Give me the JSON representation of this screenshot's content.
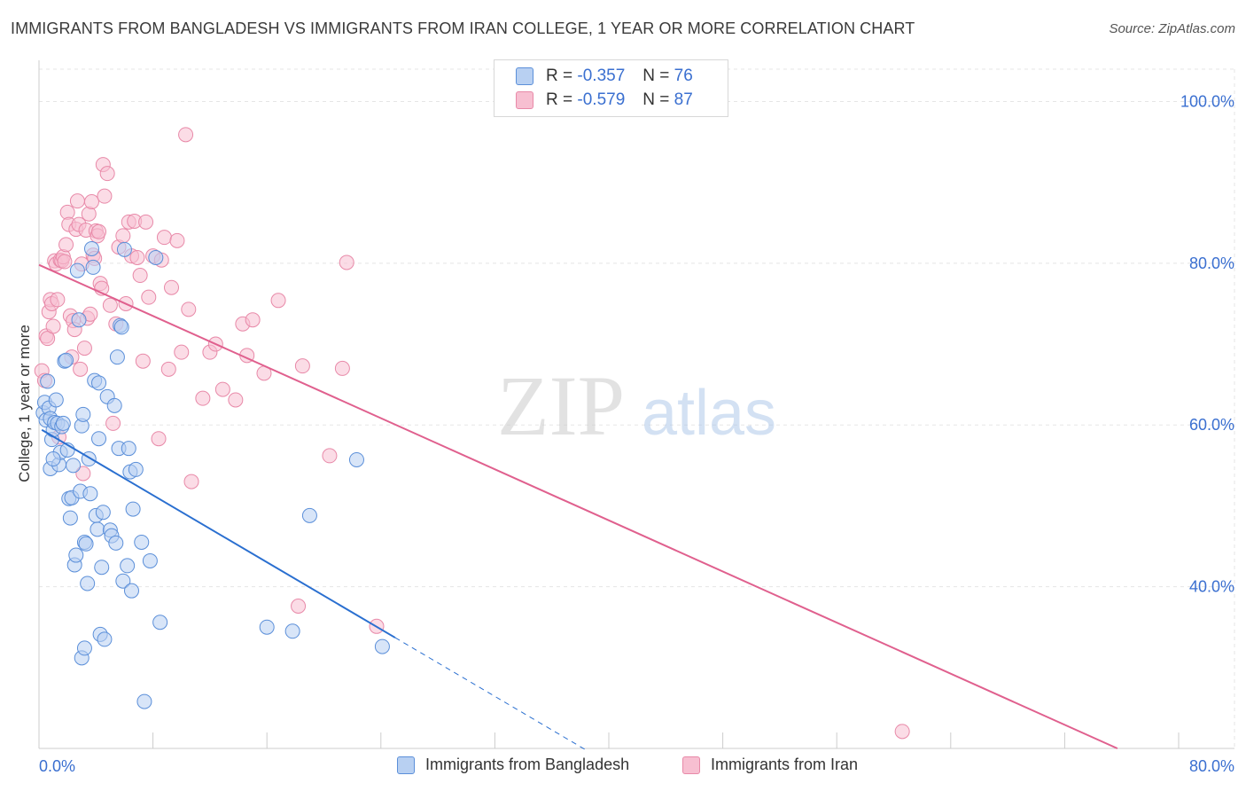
{
  "title": "IMMIGRANTS FROM BANGLADESH VS IMMIGRANTS FROM IRAN COLLEGE, 1 YEAR OR MORE CORRELATION CHART",
  "source": "Source: ZipAtlas.com",
  "watermark": {
    "zip": "ZIP",
    "atlas": "atlas"
  },
  "legend": {
    "r_label": "R =",
    "n_label": "N =",
    "rows": [
      {
        "r": "-0.357",
        "n": "76"
      },
      {
        "r": "-0.579",
        "n": "87"
      }
    ]
  },
  "colors": {
    "bangladesh_fill": "#b8d0f2",
    "bangladesh_stroke": "#5b8fd9",
    "bangladesh_line": "#2a6fd0",
    "iran_fill": "#f7bfd1",
    "iran_stroke": "#e889a8",
    "iran_line": "#e0608e",
    "tick_label": "#3a6fd0",
    "grid": "#e5e5e5"
  },
  "chart_data": {
    "type": "scatter",
    "title": "IMMIGRANTS FROM BANGLADESH VS IMMIGRANTS FROM IRAN COLLEGE, 1 YEAR OR MORE CORRELATION CHART",
    "xlabel": "",
    "ylabel": "College, 1 year or more",
    "xlim": [
      0,
      80
    ],
    "ylim": [
      20,
      104
    ],
    "x_tick_labels": [
      "0.0%",
      "80.0%"
    ],
    "y_ticks": [
      40,
      60,
      80,
      100
    ],
    "y_tick_labels": [
      "40.0%",
      "60.0%",
      "80.0%",
      "100.0%"
    ],
    "legend_position": "top-center",
    "series": [
      {
        "name": "Immigrants from Bangladesh",
        "points": [
          [
            0.3,
            61.5
          ],
          [
            0.4,
            62.8
          ],
          [
            0.5,
            60.6
          ],
          [
            0.6,
            65.4
          ],
          [
            0.7,
            62.1
          ],
          [
            0.8,
            60.8
          ],
          [
            0.9,
            58.2
          ],
          [
            0.8,
            54.6
          ],
          [
            1.0,
            59.4
          ],
          [
            1.1,
            60.3
          ],
          [
            1.2,
            63.1
          ],
          [
            1.3,
            60.2
          ],
          [
            1.4,
            55.1
          ],
          [
            1.5,
            56.6
          ],
          [
            1.6,
            59.8
          ],
          [
            1.7,
            60.2
          ],
          [
            1.8,
            67.9
          ],
          [
            1.9,
            68.0
          ],
          [
            2.0,
            56.9
          ],
          [
            2.1,
            50.9
          ],
          [
            2.2,
            48.5
          ],
          [
            2.3,
            51.0
          ],
          [
            2.4,
            55.0
          ],
          [
            2.5,
            42.7
          ],
          [
            2.6,
            43.9
          ],
          [
            2.7,
            79.1
          ],
          [
            2.8,
            73.0
          ],
          [
            2.9,
            51.8
          ],
          [
            3.0,
            59.9
          ],
          [
            3.1,
            61.3
          ],
          [
            3.2,
            45.5
          ],
          [
            3.3,
            45.3
          ],
          [
            3.4,
            40.4
          ],
          [
            3.5,
            55.8
          ],
          [
            3.6,
            51.5
          ],
          [
            3.7,
            81.8
          ],
          [
            3.8,
            79.5
          ],
          [
            3.9,
            65.5
          ],
          [
            4.0,
            48.8
          ],
          [
            4.1,
            47.1
          ],
          [
            4.2,
            65.2
          ],
          [
            4.3,
            34.1
          ],
          [
            4.4,
            42.4
          ],
          [
            4.5,
            49.2
          ],
          [
            4.6,
            33.5
          ],
          [
            4.8,
            63.5
          ],
          [
            5.0,
            47.0
          ],
          [
            5.1,
            46.3
          ],
          [
            5.3,
            62.4
          ],
          [
            5.4,
            45.4
          ],
          [
            5.5,
            68.4
          ],
          [
            5.6,
            57.1
          ],
          [
            5.7,
            72.3
          ],
          [
            5.8,
            72.1
          ],
          [
            5.9,
            40.7
          ],
          [
            6.0,
            81.7
          ],
          [
            6.2,
            42.6
          ],
          [
            6.3,
            57.1
          ],
          [
            6.4,
            54.2
          ],
          [
            6.5,
            39.5
          ],
          [
            6.6,
            49.6
          ],
          [
            6.8,
            54.5
          ],
          [
            7.2,
            45.5
          ],
          [
            7.4,
            25.8
          ],
          [
            7.8,
            43.2
          ],
          [
            8.2,
            80.7
          ],
          [
            8.5,
            35.6
          ],
          [
            3.0,
            31.2
          ],
          [
            3.2,
            32.4
          ],
          [
            4.2,
            58.3
          ],
          [
            16.0,
            35.0
          ],
          [
            17.8,
            34.5
          ],
          [
            19.0,
            48.8
          ],
          [
            22.3,
            55.7
          ],
          [
            24.1,
            32.6
          ],
          [
            1.0,
            55.8
          ]
        ]
      },
      {
        "name": "Immigrants from Iran",
        "points": [
          [
            0.2,
            66.7
          ],
          [
            0.4,
            65.5
          ],
          [
            0.5,
            71.0
          ],
          [
            0.6,
            70.7
          ],
          [
            0.7,
            74.0
          ],
          [
            0.8,
            75.5
          ],
          [
            0.9,
            75.0
          ],
          [
            1.0,
            72.2
          ],
          [
            1.1,
            80.3
          ],
          [
            1.2,
            79.9
          ],
          [
            1.3,
            75.5
          ],
          [
            1.5,
            80.4
          ],
          [
            1.6,
            80.3
          ],
          [
            1.7,
            80.8
          ],
          [
            1.8,
            80.2
          ],
          [
            1.9,
            82.3
          ],
          [
            2.0,
            86.3
          ],
          [
            2.1,
            84.8
          ],
          [
            2.2,
            73.5
          ],
          [
            2.3,
            68.4
          ],
          [
            2.4,
            72.9
          ],
          [
            2.5,
            71.8
          ],
          [
            2.6,
            84.2
          ],
          [
            2.7,
            87.7
          ],
          [
            2.8,
            84.8
          ],
          [
            2.9,
            66.9
          ],
          [
            3.0,
            79.9
          ],
          [
            3.1,
            54.0
          ],
          [
            3.2,
            69.5
          ],
          [
            3.3,
            84.1
          ],
          [
            3.4,
            73.2
          ],
          [
            3.5,
            86.1
          ],
          [
            3.6,
            73.7
          ],
          [
            3.7,
            87.6
          ],
          [
            3.8,
            81.0
          ],
          [
            3.9,
            80.6
          ],
          [
            4.0,
            84.0
          ],
          [
            4.1,
            83.4
          ],
          [
            4.2,
            83.9
          ],
          [
            4.3,
            77.5
          ],
          [
            4.4,
            76.9
          ],
          [
            4.5,
            92.2
          ],
          [
            4.6,
            88.3
          ],
          [
            4.8,
            91.1
          ],
          [
            5.0,
            74.8
          ],
          [
            5.2,
            60.2
          ],
          [
            5.4,
            72.5
          ],
          [
            5.6,
            82.0
          ],
          [
            5.9,
            83.4
          ],
          [
            6.1,
            75.0
          ],
          [
            6.3,
            85.1
          ],
          [
            6.5,
            80.9
          ],
          [
            6.7,
            85.2
          ],
          [
            6.9,
            80.7
          ],
          [
            7.1,
            78.5
          ],
          [
            7.3,
            67.9
          ],
          [
            7.5,
            85.1
          ],
          [
            7.7,
            75.8
          ],
          [
            8.0,
            80.9
          ],
          [
            8.4,
            58.3
          ],
          [
            8.6,
            80.4
          ],
          [
            8.8,
            83.2
          ],
          [
            9.1,
            66.9
          ],
          [
            9.3,
            77.0
          ],
          [
            9.7,
            82.8
          ],
          [
            10.0,
            69.0
          ],
          [
            10.3,
            95.9
          ],
          [
            10.5,
            74.3
          ],
          [
            10.7,
            53.0
          ],
          [
            11.5,
            63.3
          ],
          [
            12.0,
            69.0
          ],
          [
            12.4,
            70.0
          ],
          [
            12.9,
            64.4
          ],
          [
            13.8,
            63.1
          ],
          [
            14.3,
            72.5
          ],
          [
            14.6,
            68.6
          ],
          [
            15.0,
            73.0
          ],
          [
            15.8,
            66.4
          ],
          [
            16.8,
            75.4
          ],
          [
            18.2,
            37.6
          ],
          [
            18.5,
            67.3
          ],
          [
            20.4,
            56.2
          ],
          [
            21.3,
            67.0
          ],
          [
            21.6,
            80.1
          ],
          [
            23.7,
            35.1
          ],
          [
            60.6,
            22.1
          ],
          [
            1.4,
            58.5
          ]
        ]
      }
    ],
    "trend_lines": [
      {
        "series": "Immigrants from Bangladesh",
        "x": [
          0.2,
          25.0
        ],
        "y": [
          59.4,
          33.7
        ],
        "dashed_extension_x": [
          25.0,
          38.5
        ],
        "dashed_extension_y": [
          33.7,
          19.7
        ]
      },
      {
        "series": "Immigrants from Iran",
        "x": [
          0.0,
          75.7
        ],
        "y": [
          79.8,
          20.0
        ]
      }
    ]
  },
  "bottom_legend": [
    {
      "label": "Immigrants from Bangladesh"
    },
    {
      "label": "Immigrants from Iran"
    }
  ]
}
